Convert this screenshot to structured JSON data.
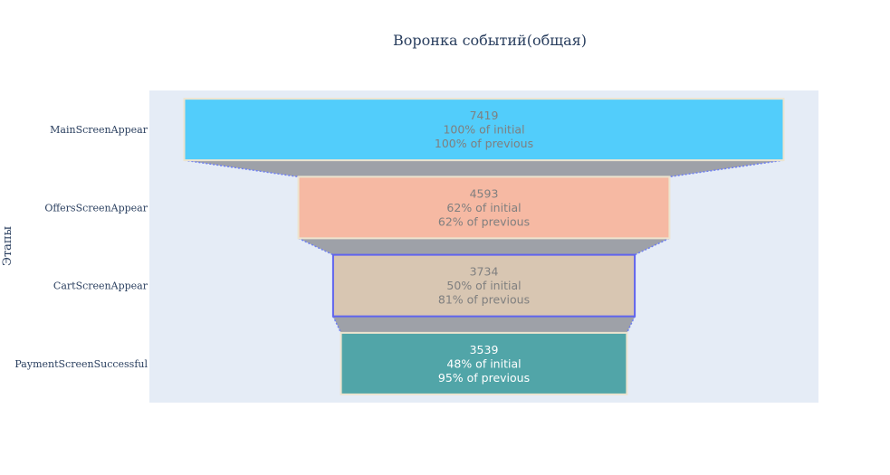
{
  "chart_data": {
    "type": "funnel",
    "title": "Воронка событий(общая)",
    "ylabel": "Этапы",
    "categories": [
      "MainScreenAppear",
      "OffersScreenAppear",
      "CartScreenAppear",
      "PaymentScreenSuccessful"
    ],
    "values": [
      7419,
      4593,
      3734,
      3539
    ],
    "percent_initial": [
      "100% of initial",
      "62% of initial",
      "50% of initial",
      "48% of initial"
    ],
    "percent_previous": [
      "100% of previous",
      "62% of previous",
      "81% of previous",
      "95% of previous"
    ],
    "colors": [
      "#52cdfb",
      "#f6b9a3",
      "#d8c6b2",
      "#51a5a8"
    ],
    "text_colors": [
      "#7f7f7f",
      "#7f7f7f",
      "#7f7f7f",
      "#ffffff"
    ],
    "outline_colors": [
      "#ede4cf",
      "#ede4cf",
      "#6064ee",
      "#ede4cf"
    ],
    "connector_color": "#9ea1a8",
    "plot_background": "#e5ecf6"
  }
}
